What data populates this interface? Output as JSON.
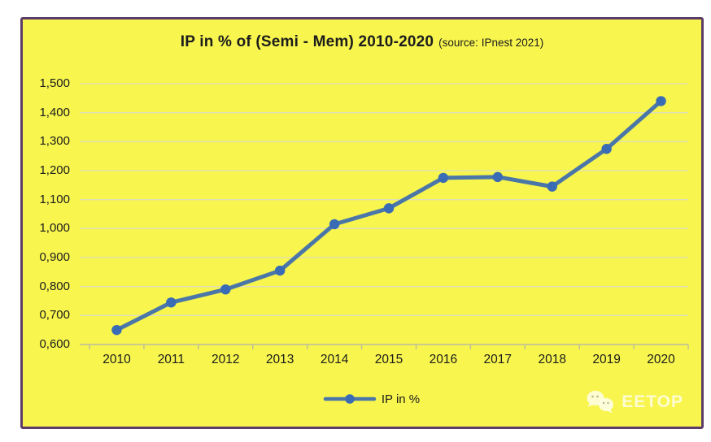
{
  "title": {
    "main": "IP in % of (Semi - Mem) 2010-2020",
    "source": "(source: IPnest 2021)"
  },
  "legend": {
    "label": "IP in %"
  },
  "watermark": {
    "label": "EETOP",
    "icon": "wechat-bubbles-icon"
  },
  "colors": {
    "chart_background": "#f7f54e",
    "frame_border": "#5d3d68",
    "line": "#4a76a8",
    "marker": "#3a6bb5",
    "gridline": "#dedebc",
    "axis": "#bdbd96",
    "text": "#1c1c1c",
    "watermark": "rgba(255,255,255,0.85)"
  },
  "chart_data": {
    "type": "line",
    "title": "IP in % of (Semi - Mem) 2010-2020",
    "subtitle": "(source: IPnest 2021)",
    "categories": [
      "2010",
      "2011",
      "2012",
      "2013",
      "2014",
      "2015",
      "2016",
      "2017",
      "2018",
      "2019",
      "2020"
    ],
    "series": [
      {
        "name": "IP in %",
        "values": [
          0.65,
          0.745,
          0.79,
          0.855,
          1.015,
          1.07,
          1.175,
          1.178,
          1.145,
          1.275,
          1.44
        ]
      }
    ],
    "xlabel": "",
    "ylabel": "",
    "ylim": [
      0.6,
      1.5
    ],
    "y_ticks": [
      {
        "value": 1.5,
        "label": "1,500"
      },
      {
        "value": 1.4,
        "label": "1,400"
      },
      {
        "value": 1.3,
        "label": "1,300"
      },
      {
        "value": 1.2,
        "label": "1,200"
      },
      {
        "value": 1.1,
        "label": "1,100"
      },
      {
        "value": 1.0,
        "label": "1,000"
      },
      {
        "value": 0.9,
        "label": "0,900"
      },
      {
        "value": 0.8,
        "label": "0,800"
      },
      {
        "value": 0.7,
        "label": "0,700"
      },
      {
        "value": 0.6,
        "label": "0,600"
      }
    ],
    "grid": true,
    "legend_position": "bottom",
    "number_format": "comma-decimal"
  }
}
